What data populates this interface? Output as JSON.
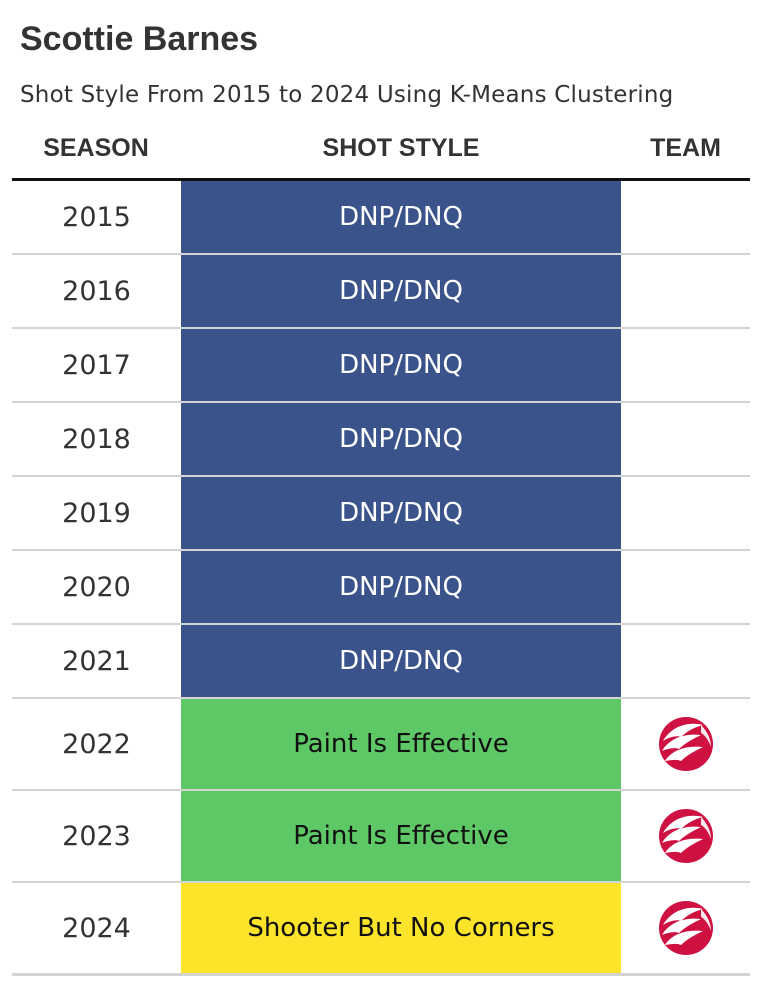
{
  "title": "Scottie Barnes",
  "subtitle": "Shot Style From 2015 to 2024 Using K-Means Clustering",
  "columns": {
    "season": "SEASON",
    "style": "SHOT STYLE",
    "team": "TEAM"
  },
  "colors": {
    "DNP/DNQ": "#3b538b",
    "Paint Is Effective": "#5ec866",
    "Shooter But No Corners": "#fbe42a",
    "logo_red": "#ce1141"
  },
  "rows": [
    {
      "season": "2015",
      "style": "DNP/DNQ",
      "team_logo": ""
    },
    {
      "season": "2016",
      "style": "DNP/DNQ",
      "team_logo": ""
    },
    {
      "season": "2017",
      "style": "DNP/DNQ",
      "team_logo": ""
    },
    {
      "season": "2018",
      "style": "DNP/DNQ",
      "team_logo": ""
    },
    {
      "season": "2019",
      "style": "DNP/DNQ",
      "team_logo": ""
    },
    {
      "season": "2020",
      "style": "DNP/DNQ",
      "team_logo": ""
    },
    {
      "season": "2021",
      "style": "DNP/DNQ",
      "team_logo": ""
    },
    {
      "season": "2022",
      "style": "Paint Is Effective",
      "team_logo": "raptors-logo-icon"
    },
    {
      "season": "2023",
      "style": "Paint Is Effective",
      "team_logo": "raptors-logo-icon"
    },
    {
      "season": "2024",
      "style": "Shooter But No Corners",
      "team_logo": "raptors-logo-icon"
    }
  ]
}
